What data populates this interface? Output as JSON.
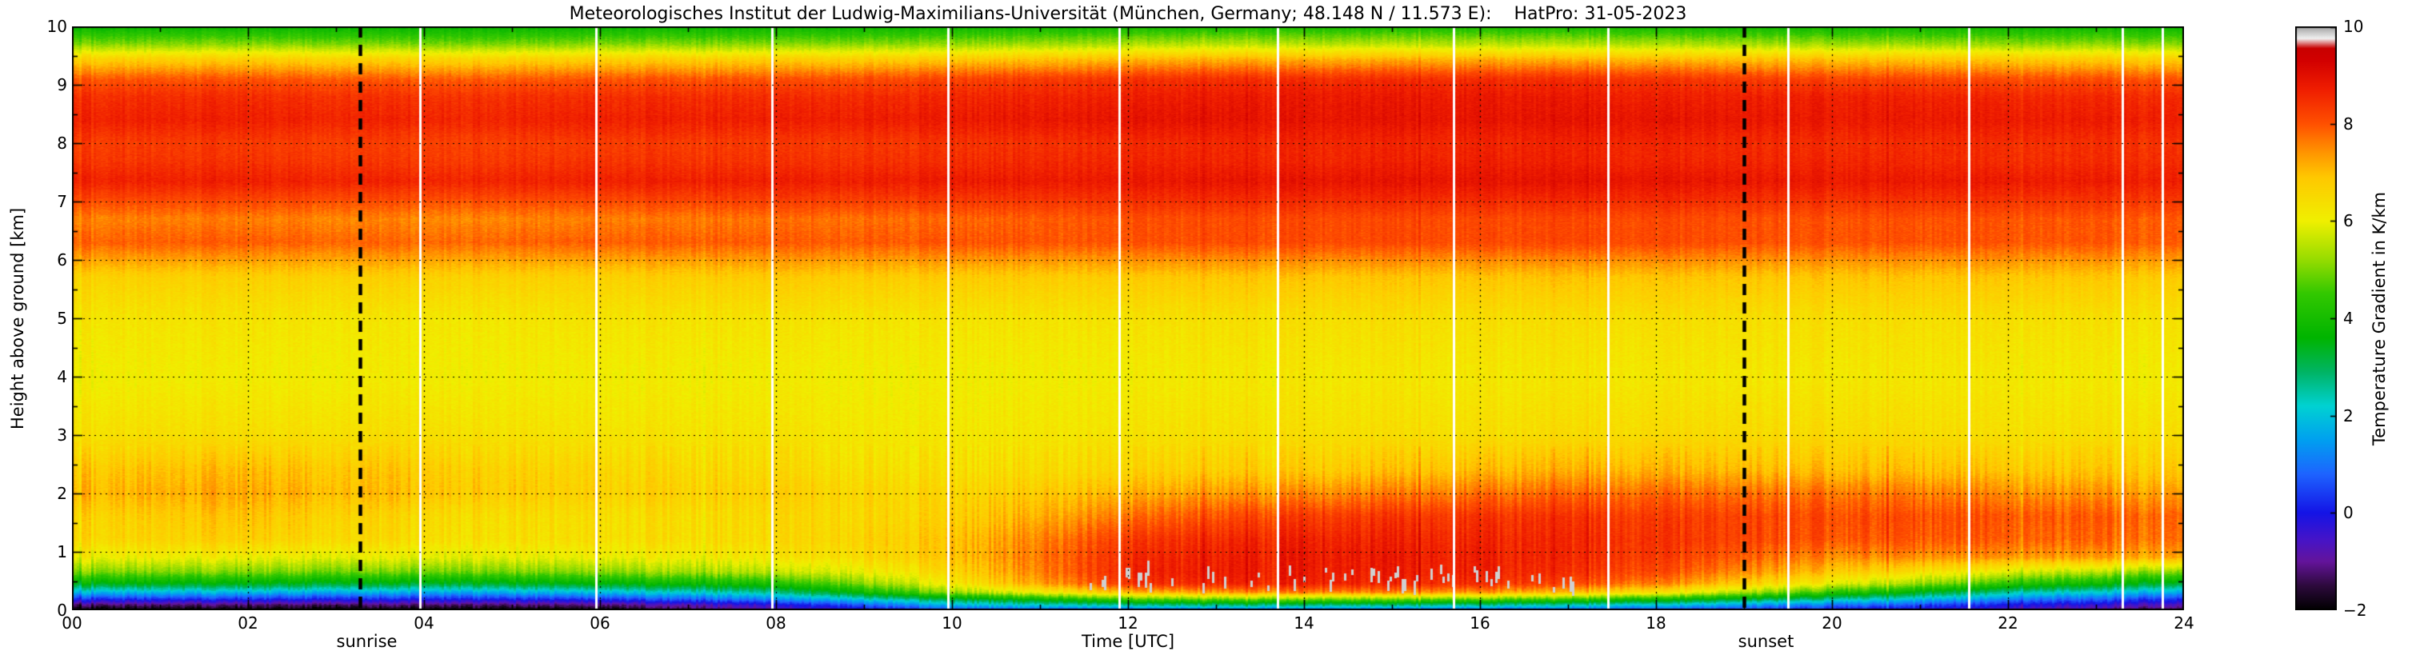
{
  "title": "Meteorologisches Institut der Ludwig-Maximilians-Universität (München, Germany; 48.148 N / 11.573 E):    HatPro: 31-05-2023",
  "chart_data": {
    "type": "heatmap",
    "xlabel": "Time [UTC]",
    "ylabel": "Height above ground [km]",
    "colorbar_label": "Temperature Gradient in K/km",
    "xlim": [
      0,
      24
    ],
    "ylim": [
      0,
      10
    ],
    "zlim": [
      -2,
      10
    ],
    "grid": "dotted",
    "x_ticks": {
      "values": [
        0,
        2,
        4,
        6,
        8,
        10,
        12,
        14,
        16,
        18,
        20,
        22,
        24
      ],
      "labels": [
        "00",
        "02",
        "04",
        "06",
        "08",
        "10",
        "12",
        "14",
        "16",
        "18",
        "20",
        "22",
        "24"
      ]
    },
    "y_ticks": {
      "values": [
        0,
        1,
        2,
        3,
        4,
        5,
        6,
        7,
        8,
        9,
        10
      ],
      "labels": [
        "0",
        "1",
        "2",
        "3",
        "4",
        "5",
        "6",
        "7",
        "8",
        "9",
        "10"
      ]
    },
    "colorbar_ticks": {
      "values": [
        -2,
        0,
        2,
        4,
        6,
        8,
        10
      ],
      "labels": [
        "−2",
        "0",
        "2",
        "4",
        "6",
        "8",
        "10"
      ]
    },
    "colorscale": [
      {
        "v": -2.0,
        "c": "#000000"
      },
      {
        "v": -1.5,
        "c": "#2d0a3c"
      },
      {
        "v": -1.0,
        "c": "#64149b"
      },
      {
        "v": -0.55,
        "c": "#4614c8"
      },
      {
        "v": 0.0,
        "c": "#1414e6"
      },
      {
        "v": 0.8,
        "c": "#1e64ff"
      },
      {
        "v": 1.5,
        "c": "#00a0f0"
      },
      {
        "v": 2.2,
        "c": "#00d2d2"
      },
      {
        "v": 2.9,
        "c": "#00b464"
      },
      {
        "v": 3.6,
        "c": "#00b400"
      },
      {
        "v": 4.5,
        "c": "#32c800"
      },
      {
        "v": 5.2,
        "c": "#96dc00"
      },
      {
        "v": 6.0,
        "c": "#f0f000"
      },
      {
        "v": 6.9,
        "c": "#ffc800"
      },
      {
        "v": 7.4,
        "c": "#ff9600"
      },
      {
        "v": 8.0,
        "c": "#ff5000"
      },
      {
        "v": 8.7,
        "c": "#f01e00"
      },
      {
        "v": 9.3,
        "c": "#d20000"
      },
      {
        "v": 9.55,
        "c": "#c80000"
      },
      {
        "v": 9.75,
        "c": "#f0f0f0"
      },
      {
        "v": 10.0,
        "c": "#a0a0a0"
      }
    ],
    "sunrise": {
      "time": 3.27,
      "label": "sunrise"
    },
    "sunset": {
      "time": 19.0,
      "label": "sunset"
    },
    "gap_times": [
      3.95,
      5.95,
      7.95,
      9.95,
      11.9,
      13.7,
      15.7,
      17.45,
      19.5,
      21.55,
      23.3,
      23.75
    ],
    "noise": {
      "seed": 42,
      "column_amplitude": 0.55,
      "pixel_amplitude": 0.28
    },
    "saturation_speckles": {
      "t_range": [
        11.4,
        17.2
      ],
      "h_range": [
        0.34,
        0.72
      ],
      "density": 0.25
    },
    "times": [
      0,
      2,
      4,
      6,
      8,
      10,
      12,
      14,
      16,
      18,
      20,
      22,
      24
    ],
    "heights": [
      0.0,
      0.08,
      0.18,
      0.3,
      0.45,
      0.65,
      0.9,
      1.2,
      1.6,
      2.0,
      2.4,
      3.0,
      4.0,
      5.0,
      5.7,
      6.3,
      6.7,
      7.0,
      7.35,
      7.7,
      8.0,
      8.4,
      8.8,
      9.1,
      9.45,
      9.7,
      10.0
    ],
    "values": [
      [
        -2.0,
        -2.0,
        -2.0,
        -2.0,
        -0.8,
        0.5,
        0.8,
        1.0,
        0.8,
        0.5,
        0.0,
        -0.6,
        -1.5
      ],
      [
        -1.2,
        -1.3,
        -1.3,
        -1.2,
        -0.3,
        1.8,
        2.6,
        2.8,
        2.6,
        2.0,
        1.0,
        0.0,
        -0.8
      ],
      [
        0.3,
        0.2,
        0.1,
        0.3,
        1.2,
        3.2,
        4.6,
        5.0,
        4.8,
        4.0,
        2.6,
        1.2,
        0.2
      ],
      [
        1.9,
        1.8,
        1.6,
        1.9,
        2.6,
        5.2,
        7.0,
        7.6,
        7.4,
        6.4,
        4.4,
        2.6,
        1.6
      ],
      [
        3.6,
        3.5,
        3.3,
        3.6,
        4.1,
        6.2,
        8.4,
        8.7,
        8.5,
        7.6,
        6.0,
        4.4,
        3.2
      ],
      [
        5.1,
        5.0,
        4.9,
        5.1,
        5.5,
        6.6,
        8.6,
        8.8,
        8.7,
        8.1,
        6.9,
        5.9,
        5.0
      ],
      [
        6.1,
        6.0,
        5.9,
        6.0,
        6.2,
        6.9,
        8.5,
        8.8,
        8.7,
        8.3,
        7.5,
        7.4,
        7.2
      ],
      [
        6.6,
        6.7,
        6.4,
        6.4,
        6.5,
        6.9,
        8.3,
        8.7,
        8.6,
        8.4,
        8.0,
        7.9,
        7.7
      ],
      [
        6.7,
        6.9,
        6.5,
        6.4,
        6.5,
        6.7,
        7.7,
        8.3,
        8.4,
        8.3,
        8.1,
        8.0,
        7.8
      ],
      [
        7.1,
        7.2,
        6.9,
        6.7,
        6.7,
        6.6,
        7.1,
        7.5,
        7.7,
        7.8,
        7.7,
        7.5,
        7.3
      ],
      [
        6.9,
        7.0,
        6.8,
        6.6,
        6.5,
        6.4,
        6.6,
        6.8,
        7.0,
        7.1,
        7.0,
        6.9,
        6.8
      ],
      [
        6.4,
        6.4,
        6.4,
        6.3,
        6.3,
        6.2,
        6.3,
        6.4,
        6.4,
        6.5,
        6.5,
        6.4,
        6.4
      ],
      [
        6.1,
        6.1,
        6.1,
        6.1,
        6.1,
        6.1,
        6.1,
        6.2,
        6.2,
        6.2,
        6.2,
        6.2,
        6.1
      ],
      [
        6.3,
        6.3,
        6.2,
        6.3,
        6.3,
        6.3,
        6.3,
        6.4,
        6.4,
        6.4,
        6.4,
        6.4,
        6.3
      ],
      [
        6.7,
        6.7,
        6.7,
        6.7,
        6.8,
        6.8,
        6.8,
        6.9,
        6.9,
        6.9,
        6.9,
        6.9,
        6.8
      ],
      [
        7.9,
        7.9,
        7.8,
        7.9,
        7.9,
        8.0,
        8.0,
        8.1,
        8.1,
        8.1,
        8.0,
        8.0,
        7.9
      ],
      [
        7.6,
        7.6,
        7.5,
        7.6,
        7.7,
        7.8,
        8.0,
        8.1,
        8.1,
        8.1,
        8.0,
        8.0,
        7.9
      ],
      [
        8.1,
        8.1,
        8.0,
        8.1,
        8.2,
        8.3,
        8.4,
        8.5,
        8.5,
        8.5,
        8.4,
        8.4,
        8.3
      ],
      [
        8.7,
        8.7,
        8.6,
        8.7,
        8.7,
        8.8,
        8.8,
        8.9,
        8.9,
        8.9,
        8.8,
        8.8,
        8.7
      ],
      [
        8.4,
        8.4,
        8.3,
        8.4,
        8.4,
        8.5,
        8.6,
        8.6,
        8.7,
        8.6,
        8.6,
        8.5,
        8.5
      ],
      [
        8.3,
        8.3,
        8.2,
        8.3,
        8.3,
        8.4,
        8.5,
        8.6,
        8.6,
        8.6,
        8.5,
        8.5,
        8.4
      ],
      [
        8.7,
        8.7,
        8.6,
        8.7,
        8.7,
        8.8,
        8.9,
        8.9,
        8.9,
        8.9,
        8.8,
        8.8,
        8.7
      ],
      [
        8.5,
        8.5,
        8.4,
        8.5,
        8.5,
        8.6,
        8.7,
        8.8,
        8.8,
        8.7,
        8.7,
        8.6,
        8.5
      ],
      [
        8.0,
        8.0,
        7.9,
        8.0,
        8.0,
        8.2,
        8.4,
        8.5,
        8.5,
        8.4,
        8.2,
        8.1,
        8.0
      ],
      [
        6.7,
        6.7,
        6.6,
        6.7,
        6.7,
        6.8,
        7.0,
        7.1,
        7.1,
        7.0,
        6.9,
        6.8,
        6.7
      ],
      [
        5.1,
        5.1,
        5.0,
        5.1,
        5.1,
        5.2,
        5.4,
        5.5,
        5.5,
        5.4,
        5.3,
        5.2,
        5.1
      ],
      [
        3.8,
        3.8,
        3.7,
        3.8,
        3.8,
        3.9,
        4.0,
        4.1,
        4.1,
        4.0,
        3.9,
        3.9,
        3.8
      ]
    ]
  }
}
